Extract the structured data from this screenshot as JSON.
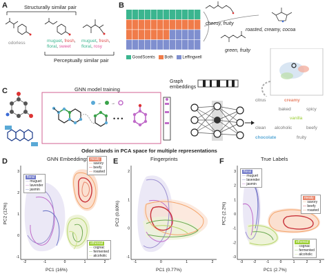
{
  "panel_a": {
    "letter": "A",
    "top_label": "Structurally similar pair",
    "bottom_label": "Perceptually similar pair",
    "mol1_desc": "odorless",
    "mol2_desc_line1": [
      "muguet",
      "fresh"
    ],
    "mol2_desc_line2": [
      "floral",
      "sweet"
    ],
    "mol3_desc_line1": [
      "muguet",
      "fresh"
    ],
    "mol3_desc_line2": [
      "floral",
      "rosy"
    ]
  },
  "panel_b": {
    "letter": "B",
    "desc_top": "cheesy, fruity",
    "desc_mid": "roasted, creamy, cocoa",
    "desc_bottom": "green, fruity",
    "legend": [
      {
        "label": "GoodScents",
        "color": "#3bb58f"
      },
      {
        "label": "Both",
        "color": "#f07c4a"
      },
      {
        "label": "Leffingwell",
        "color": "#7f8fcf"
      }
    ],
    "grid_rows": [
      [
        "#3bb58f",
        "#3bb58f",
        "#3bb58f",
        "#3bb58f",
        "#3bb58f",
        "#3bb58f",
        "#3bb58f",
        "#3bb58f",
        "#3bb58f",
        "#3bb58f",
        "#3bb58f",
        "#3bb58f"
      ],
      [
        "#f07c4a",
        "#f07c4a",
        "#f07c4a",
        "#f07c4a",
        "#f07c4a",
        "#f07c4a",
        "#f07c4a",
        "#f07c4a",
        "#f07c4a",
        "#f07c4a",
        "#f07c4a",
        "#f07c4a"
      ],
      [
        "#f07c4a",
        "#f07c4a",
        "#f07c4a",
        "#f07c4a",
        "#f07c4a",
        "#f07c4a",
        "#f07c4a",
        "#7f8fcf",
        "#7f8fcf",
        "#7f8fcf",
        "#7f8fcf",
        "#7f8fcf"
      ],
      [
        "#7f8fcf",
        "#7f8fcf",
        "#7f8fcf",
        "#7f8fcf",
        "#7f8fcf",
        "#7f8fcf",
        "#7f8fcf",
        "#7f8fcf",
        "#7f8fcf",
        "#7f8fcf",
        "#7f8fcf",
        "#7f8fcf"
      ]
    ]
  },
  "panel_c": {
    "letter": "C",
    "gnn_title": "GNN model training",
    "graph_embeddings": [
      "Graph",
      "embeddings"
    ],
    "odor_words": [
      {
        "text": "citrus",
        "color": "#777777"
      },
      {
        "text": "creamy",
        "color": "#e8866c"
      },
      {
        "text": "baked",
        "color": "#777777"
      },
      {
        "text": "spicy",
        "color": "#777777"
      },
      {
        "text": "vanilla",
        "color": "#9acd32"
      },
      {
        "text": "clean",
        "color": "#777777"
      },
      {
        "text": "alcoholic",
        "color": "#777777"
      },
      {
        "text": "beefy",
        "color": "#777777"
      },
      {
        "text": "chocolate",
        "color": "#5aa9d6"
      },
      {
        "text": "fruity",
        "color": "#777777"
      }
    ]
  },
  "section_title": "Odor Islands in PCA space for multiple representations",
  "panels_def": [
    {
      "letter": "D",
      "title": "GNN Embeddings",
      "xlabel": "PC1 (16%)",
      "ylabel": "PC2 (12%)",
      "xticks": [
        "-2",
        "-1",
        "0",
        "1",
        "2"
      ],
      "yticks": [
        "3",
        "2",
        "1",
        "0",
        "-1"
      ],
      "legend_floral": {
        "title": "floral",
        "items": [
          "muguet",
          "lavender",
          "jasmin"
        ]
      },
      "legend_meaty": {
        "title": "meaty",
        "items": [
          "savory",
          "beefy",
          "roasted"
        ]
      },
      "legend_ethereal": {
        "title": "ethereal",
        "items": [
          "cognac",
          "fermented",
          "alcoholic"
        ]
      }
    },
    {
      "letter": "E",
      "title": "Fingerprints",
      "xlabel": "PC1 (0.77%)",
      "ylabel": "PC2 (0.60%)",
      "xticks": [
        "-1",
        "0",
        "1",
        "2"
      ],
      "yticks": [
        "2",
        "1",
        "0",
        "-1"
      ]
    },
    {
      "letter": "F",
      "title": "True Labels",
      "xlabel": "PC1 (2.7%)",
      "ylabel": "PC2 (2.2%)",
      "xticks": [
        "-3",
        "-2",
        "-1",
        "0",
        "1",
        "2",
        "3"
      ],
      "yticks": [
        "3",
        "2",
        "1",
        "0",
        "-1",
        "-2",
        "-3"
      ],
      "legend_floral": {
        "title": "floral",
        "items": [
          "muguet",
          "lavender",
          "jasmin"
        ]
      },
      "legend_meaty": {
        "title": "meaty",
        "items": [
          "savory",
          "beefy",
          "roasted"
        ]
      },
      "legend_ethereal": {
        "title": "ethereal",
        "items": [
          "cognac",
          "fermented",
          "alcoholic"
        ]
      }
    }
  ],
  "colors": {
    "floral": [
      "#9b8fd0",
      "#c06bc9",
      "#6f78c8"
    ],
    "meaty": [
      "#f4a46a",
      "#c8323a",
      "#e8866c"
    ],
    "ethereal": [
      "#b5d56a",
      "#6aa84f",
      "#cfe28a"
    ]
  }
}
